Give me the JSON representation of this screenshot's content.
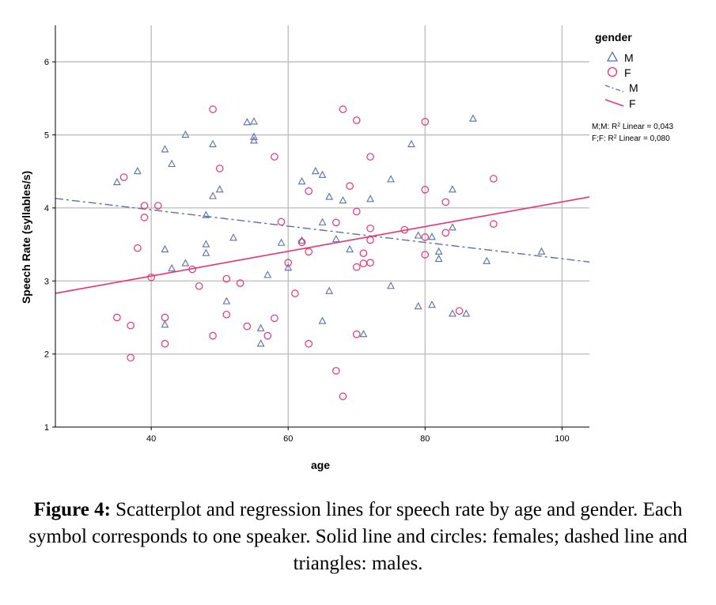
{
  "chart_data": {
    "type": "scatter",
    "title": "",
    "xlabel": "age",
    "ylabel": "Speech Rate (syllables/s)",
    "xlim": [
      26,
      104
    ],
    "ylim": [
      1,
      6.5
    ],
    "xticks": [
      40,
      60,
      80,
      100
    ],
    "yticks": [
      1,
      2,
      3,
      4,
      5,
      6
    ],
    "grid": true,
    "legend": {
      "title": "gender",
      "position": "right",
      "entries": [
        {
          "marker": "triangle",
          "label": "M"
        },
        {
          "marker": "circle",
          "label": "F"
        },
        {
          "line": "dashdot",
          "label": "M"
        },
        {
          "line": "solid",
          "label": "F"
        }
      ]
    },
    "annotations": [
      "M;M: R",
      "2",
      " Linear = 0,043",
      "F;F: R",
      "2",
      " Linear = 0,080"
    ],
    "colors": {
      "M": "#5a6fae",
      "F": "#e8336f",
      "grid": "#bbbbbb",
      "frame": "#000000"
    },
    "series": [
      {
        "name": "M",
        "marker": "triangle",
        "points": [
          [
            35,
            4.35
          ],
          [
            38,
            4.5
          ],
          [
            42,
            4.8
          ],
          [
            45,
            5.0
          ],
          [
            43,
            4.6
          ],
          [
            49,
            4.87
          ],
          [
            54,
            5.17
          ],
          [
            55,
            5.18
          ],
          [
            55,
            4.97
          ],
          [
            55,
            4.92
          ],
          [
            50,
            4.25
          ],
          [
            49,
            4.16
          ],
          [
            48,
            3.9
          ],
          [
            48,
            3.5
          ],
          [
            48,
            3.38
          ],
          [
            52,
            3.59
          ],
          [
            45,
            3.24
          ],
          [
            43,
            3.17
          ],
          [
            42,
            3.43
          ],
          [
            42,
            2.4
          ],
          [
            51,
            2.72
          ],
          [
            56,
            2.35
          ],
          [
            57,
            3.08
          ],
          [
            56,
            2.14
          ],
          [
            60,
            3.18
          ],
          [
            59,
            3.52
          ],
          [
            62,
            4.36
          ],
          [
            62,
            3.55
          ],
          [
            64,
            4.5
          ],
          [
            65,
            4.45
          ],
          [
            66,
            4.15
          ],
          [
            68,
            4.1
          ],
          [
            65,
            3.8
          ],
          [
            67,
            3.57
          ],
          [
            69,
            3.43
          ],
          [
            66,
            2.86
          ],
          [
            65,
            2.45
          ],
          [
            71,
            2.27
          ],
          [
            72,
            4.12
          ],
          [
            75,
            4.39
          ],
          [
            75,
            2.93
          ],
          [
            78,
            4.87
          ],
          [
            79,
            3.62
          ],
          [
            79,
            2.65
          ],
          [
            81,
            3.6
          ],
          [
            82,
            3.4
          ],
          [
            82,
            3.3
          ],
          [
            81,
            2.67
          ],
          [
            84,
            4.25
          ],
          [
            84,
            3.73
          ],
          [
            84,
            2.55
          ],
          [
            86,
            2.55
          ],
          [
            87,
            5.22
          ],
          [
            89,
            3.27
          ],
          [
            97,
            3.4
          ]
        ]
      },
      {
        "name": "F",
        "marker": "circle",
        "points": [
          [
            36,
            4.42
          ],
          [
            35,
            2.5
          ],
          [
            37,
            2.39
          ],
          [
            37,
            1.95
          ],
          [
            38,
            3.45
          ],
          [
            39,
            4.03
          ],
          [
            39,
            3.87
          ],
          [
            41,
            4.03
          ],
          [
            40,
            3.05
          ],
          [
            42,
            2.5
          ],
          [
            42,
            2.14
          ],
          [
            46,
            3.16
          ],
          [
            47,
            2.93
          ],
          [
            49,
            5.35
          ],
          [
            50,
            4.54
          ],
          [
            51,
            3.03
          ],
          [
            51,
            2.54
          ],
          [
            49,
            2.25
          ],
          [
            53,
            2.97
          ],
          [
            54,
            2.38
          ],
          [
            57,
            2.25
          ],
          [
            58,
            4.7
          ],
          [
            58,
            2.49
          ],
          [
            59,
            3.81
          ],
          [
            60,
            3.25
          ],
          [
            61,
            2.83
          ],
          [
            62,
            3.53
          ],
          [
            63,
            4.23
          ],
          [
            63,
            3.4
          ],
          [
            63,
            2.14
          ],
          [
            67,
            3.8
          ],
          [
            67,
            1.77
          ],
          [
            68,
            1.42
          ],
          [
            68,
            5.35
          ],
          [
            69,
            4.3
          ],
          [
            70,
            5.2
          ],
          [
            70,
            3.95
          ],
          [
            71,
            3.38
          ],
          [
            70,
            3.19
          ],
          [
            71,
            3.24
          ],
          [
            72,
            3.25
          ],
          [
            72,
            3.56
          ],
          [
            72,
            3.72
          ],
          [
            70,
            2.27
          ],
          [
            72,
            4.7
          ],
          [
            77,
            3.7
          ],
          [
            80,
            5.18
          ],
          [
            80,
            4.25
          ],
          [
            80,
            3.6
          ],
          [
            80,
            3.36
          ],
          [
            83,
            4.08
          ],
          [
            83,
            3.66
          ],
          [
            85,
            2.59
          ],
          [
            90,
            4.4
          ],
          [
            90,
            3.78
          ]
        ]
      }
    ],
    "fit_lines": [
      {
        "name": "M",
        "style": "dashdot",
        "from": [
          26,
          4.13
        ],
        "to": [
          104,
          3.26
        ]
      },
      {
        "name": "F",
        "style": "solid",
        "from": [
          26,
          2.83
        ],
        "to": [
          104,
          4.15
        ]
      }
    ]
  },
  "caption": {
    "label": "Figure 4:",
    "text": " Scatterplot and regression lines for speech rate by age and gender. Each symbol corresponds to one speaker. Solid line and circles: females; dashed line and triangles: males."
  }
}
